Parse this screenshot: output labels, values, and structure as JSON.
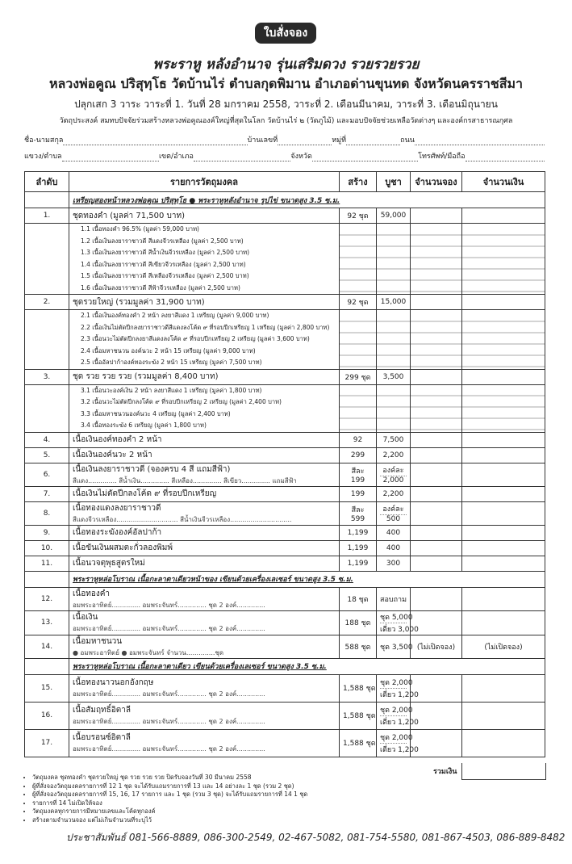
{
  "header": {
    "badge": "ใบสั่งจอง",
    "title": "พระราหู หลังอำนาจ รุ่นเสริมดวง รวยรวยรวย",
    "subtitle": "หลวงพ่อคูณ ปริสุทฺโธ วัดบ้านไร่ ตำบลกุดพิมาน อำเภอด่านขุนทด จังหวัดนครราชสีมา",
    "ritual": "ปลุกเสก 3 วาระ วาระที่ 1. วันที่ 28 มกราคม 2558, วาระที่ 2. เดือนมีนาคม, วาระที่ 3. เดือนมิถุนายน",
    "purpose": "วัตถุประสงค์ สมทบปัจจัยร่วมสร้างหลวงพ่อคูณองค์ใหญ่ที่สุดในโลก วัดบ้านไร่ ๒ (วัดภูไม้) และมอบปัจจัยช่วยเหลือวัดต่างๆ และองค์กรสาธารณกุศล"
  },
  "form": {
    "line1": [
      "ชื่อ-นามสกุล",
      "บ้านเลขที่",
      "หมู่ที่",
      "ถนน"
    ],
    "line2": [
      "แขวง/ตำบล",
      "เขต/อำเภอ",
      "จังหวัด",
      "โทรศัพท์/มือถือ"
    ]
  },
  "table": {
    "headers": [
      "ลำดับ",
      "รายการวัตถุมงคล",
      "สร้าง",
      "บูชา",
      "จำนวนจอง",
      "จำนวนเงิน"
    ],
    "rows": [
      {
        "section": "เหรียญสองหน้าหลวงพ่อคูณ ปริสุทฺโธ ● พระราหูหลังอำนาจ รูปไข่ ขนาดสูง 3.5 ซ.ม."
      },
      {
        "no": "1.",
        "item": "ชุดทองคำ (มูลค่า 71,500 บาท)",
        "made": [
          "92 ชุด"
        ],
        "price": [
          "59,000"
        ]
      },
      {
        "subs": [
          "1.1   เนื้อทองคำ 96.5% (มูลค่า 59,000 บาท)",
          "1.2   เนื้อเงินลงยาราชาวดี สีแดงจีวรเหลือง (มูลค่า 2,500 บาท)",
          "1.3   เนื้อเงินลงยาราชาวดี สีน้ำเงินจีวรเหลือง (มูลค่า 2,500 บาท)",
          "1.4   เนื้อเงินลงยาราชาวดี สีเขียวจีวรเหลือง (มูลค่า 2,500 บาท)",
          "1.5   เนื้อเงินลงยาราชาวดี สีเหลืองจีวรเหลือง (มูลค่า 2,500 บาท)",
          "1.6   เนื้อเงินลงยาราชาวดี สีฟ้าจีวรเหลือง (มูลค่า 2,500 บาท)"
        ]
      },
      {
        "no": "2.",
        "item": "ชุดรวยใหญ่ (รวมมูลค่า 31,900 บาท)",
        "made": [
          "92 ชุด"
        ],
        "price": [
          "15,000"
        ]
      },
      {
        "subs": [
          "2.1   เนื้อเงินองค์ทองคำ 2 หน้า ลงยาสีแดง 1 เหรียญ (มูลค่า 9,000 บาท)",
          "2.2   เนื้อเงินไม่ตัดปีกลงยาราชาวดีสีแดงลงโค้ด ๙ ที่รอบปีกเหรียญ 1 เหรียญ (มูลค่า 2,800 บาท)",
          "2.3   เนื้อนวะไม่ตัดปีกลงยาสีแดงลงโค้ด ๙ ที่รอบปีกเหรียญ 2 เหรียญ (มูลค่า 3,600 บาท)",
          "2.4   เนื้อมหาชนวน องค์นวะ 2 หน้า 15 เหรียญ (มูลค่า 9,000 บาท)",
          "2.5   เนื้ออัลปาก้าองค์ทองระฆัง 2 หน้า 15 เหรียญ (มูลค่า 7,500 บาท)"
        ]
      },
      {
        "no": "3.",
        "item": "ชุด รวย รวย รวย (รวมมูลค่า 8,400 บาท)",
        "made": [
          "299 ชุด"
        ],
        "price": [
          "3,500"
        ]
      },
      {
        "subs": [
          "3.1   เนื้อนวะองค์เงิน 2 หน้า ลงยาสีแดง 1 เหรียญ (มูลค่า 1,800 บาท)",
          "3.2   เนื้อนวะไม่ตัดปีกลงโค้ด ๙ ที่รอบปีกเหรียญ 2 เหรียญ (มูลค่า 2,400 บาท)",
          "3.3   เนื้อมหาชนวนองค์นวะ 4 เหรียญ (มูลค่า 2,400 บาท)",
          "3.4   เนื้อทองระฆัง 6 เหรียญ (มูลค่า 1,800 บาท)"
        ]
      },
      {
        "no": "4.",
        "item": "เนื้อเงินองค์ทองคำ 2 หน้า",
        "made": [
          "92"
        ],
        "price": [
          "7,500"
        ]
      },
      {
        "no": "5.",
        "item": "เนื้อเงินองค์นวะ 2 หน้า",
        "made": [
          "299"
        ],
        "price": [
          "2,200"
        ]
      },
      {
        "no": "6.",
        "item": "เนื้อเงินลงยาราชาวดี (จองครบ 4 สี แถมสีฟ้า)",
        "detail": "สีแดง.............. สีน้ำเงิน.............. สีเหลือง.............. สีเขียว.............. แถมสีฟ้า",
        "made": [
          "สีละ",
          "199"
        ],
        "price": [
          "องค์ละ",
          "2,000"
        ]
      },
      {
        "no": "7.",
        "item": "เนื้อเงินไม่ตัดปีกลงโค้ด ๙ ที่รอบปีกเหรียญ",
        "made": [
          "199"
        ],
        "price": [
          "2,200"
        ]
      },
      {
        "no": "8.",
        "item": "เนื้อทองแดงลงยาราชาวดี",
        "detail": "สีแดงจีวรเหลือง.............................. สีน้ำเงินจีวรเหลือง..............................",
        "made": [
          "สีละ",
          "599"
        ],
        "price": [
          "องค์ละ",
          "500"
        ]
      },
      {
        "no": "9.",
        "item": "เนื้อทองระฆังองค์อัลปาก้า",
        "made": [
          "1,199"
        ],
        "price": [
          "400"
        ]
      },
      {
        "no": "10.",
        "item": "เนื้อขันเงินผสมตะกั่วลองพิมพ์",
        "made": [
          "1,199"
        ],
        "price": [
          "400"
        ]
      },
      {
        "no": "11.",
        "item": "เนื้อนวจตุพุธสูตรใหม่",
        "made": [
          "1,199"
        ],
        "price": [
          "300"
        ]
      },
      {
        "section": "พระราหูหล่อโบราณ เนื้อกะลาตาเดียวหน้าของ เขียนด้วยเครื่องเลเซอร์ ขนาดสูง 3.5 ซ.ม."
      },
      {
        "no": "12.",
        "item": "เนื้อทองคำ",
        "detail": "อมพระอาทิตย์.............. อมพระจันทร์.............. ชุด 2 องค์..............",
        "made": [
          "18 ชุด"
        ],
        "price": [
          "สอบถาม"
        ]
      },
      {
        "no": "13.",
        "item": "เนื้อเงิน",
        "detail": "อมพระอาทิตย์.............. อมพระจันทร์.............. ชุด 2 องค์..............",
        "made": [
          "188 ชุด"
        ],
        "price": [
          "ชุด 5,000",
          "เดี่ยว 3,000"
        ]
      },
      {
        "no": "14.",
        "item": "เนื้อมหาชนวน",
        "detail": "● อมพระอาทิตย์  ● อมพระจันทร์  จำนวน..............ชุด",
        "made": [
          "588 ชุด"
        ],
        "price": [
          "ชุด 3,500"
        ],
        "reserve": "(ไม่เปิดจอง)",
        "amount": "(ไม่เปิดจอง)"
      },
      {
        "section": "พระราหูหล่อโบราณ เนื้อกะลาตาเดียว เขียนด้วยเครื่องเลเซอร์ ขนาดสูง 3.5 ซ.ม."
      },
      {
        "no": "15.",
        "item": "เนื้อทองนาวนอกอังกฤษ",
        "detail": "อมพระอาทิตย์.............. อมพระจันทร์.............. ชุด 2 องค์..............",
        "made": [
          "1,588 ชุด"
        ],
        "price": [
          "ชุด 2,000",
          "เดี่ยว 1,200"
        ]
      },
      {
        "no": "16.",
        "item": "เนื้อสัมฤทธิ์อิตาลี",
        "detail": "อมพระอาทิตย์.............. อมพระจันทร์.............. ชุด 2 องค์..............",
        "made": [
          "1,588 ชุด"
        ],
        "price": [
          "ชุด 2,000",
          "เดี่ยว 1,200"
        ]
      },
      {
        "no": "17.",
        "item": "เนื้อบรอนซ์อิตาลี",
        "detail": "อมพระอาทิตย์.............. อมพระจันทร์.............. ชุด 2 องค์..............",
        "made": [
          "1,588 ชุด"
        ],
        "price": [
          "ชุด 2,000",
          "เดี่ยว 1,200"
        ]
      }
    ],
    "total_label": "รวมเงิน"
  },
  "notes": [
    "วัตถุมงคล ชุดทองคำ ชุดรวยใหญ่ ชุด รวย รวย รวย ปิดรับจองวันที่ 30 มีนาคม 2558",
    "ผู้ที่สั่งจองวัตถุมงคลรายการที่ 12 1 ชุด จะได้รับแถมรายการที่ 13 และ 14 อย่างละ 1 ชุด (รวม 2 ชุด)",
    "ผู้ที่สั่งจองวัตถุมงคลรายการที่ 15, 16, 17 รายการ และ 1 ชุด (รวม 3 ชุด) จะได้รับแถมรายการที่ 14 1 ชุด",
    "รายการที่ 14 ไม่เปิดให้จอง",
    "วัตถุมงคลทุกรายการมีหมายเลขและโค้ดทุกองค์",
    "สร้างตามจำนวนจอง แต่ไม่เกินจำนวนที่ระบุไว้"
  ],
  "footer": "ประชาสัมพันธ์ 081-566-8889, 086-300-2549, 02-467-5082, 081-754-5580, 081-867-4503, 086-889-8482"
}
